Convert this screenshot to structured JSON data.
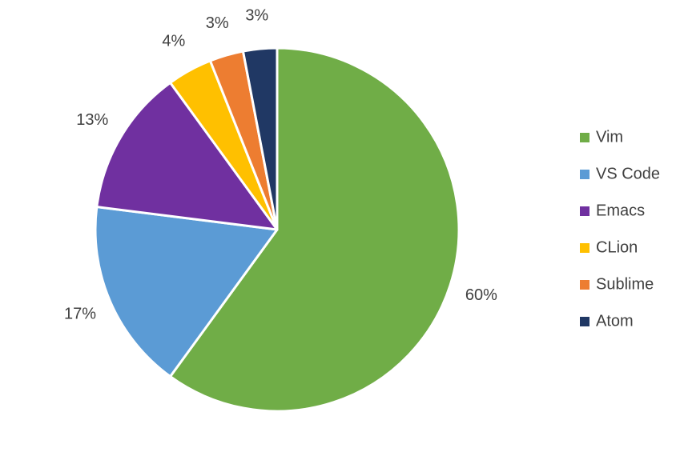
{
  "chart_data": {
    "type": "pie",
    "categories": [
      "Vim",
      "VS Code",
      "Emacs",
      "CLion",
      "Sublime",
      "Atom"
    ],
    "values": [
      60,
      17,
      13,
      4,
      3,
      3
    ],
    "value_labels": [
      "60%",
      "17%",
      "13%",
      "4%",
      "3%",
      "3%"
    ],
    "colors": [
      "#70ad47",
      "#5b9bd5",
      "#7030a0",
      "#ffc000",
      "#ed7d31",
      "#203864"
    ],
    "legend": "right"
  }
}
